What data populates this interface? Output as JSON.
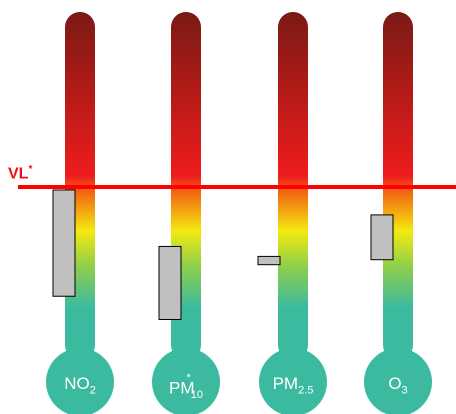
{
  "chart_data": {
    "type": "thermometer-range",
    "limit_line": {
      "label": "VL",
      "marker": "*",
      "color": "#ff0000"
    },
    "pollutants": [
      {
        "name": "NO",
        "sub": "2",
        "sup": "",
        "range": [
          0.36,
          1.0
        ]
      },
      {
        "name": "PM",
        "sub": "10",
        "sup": "*",
        "range": [
          0.22,
          0.66
        ]
      },
      {
        "name": "PM",
        "sub": "2.5",
        "sup": "",
        "range": [
          0.55,
          0.6
        ]
      },
      {
        "name": "O",
        "sub": "3",
        "sup": "",
        "range": [
          0.58,
          0.85
        ]
      }
    ],
    "colors": {
      "top": "#7a1a14",
      "mid": "#ee1c1c",
      "yellow": "#f4ea10",
      "bottom": "#3cbaa0",
      "bar_fill": "#c0c0c0"
    }
  }
}
